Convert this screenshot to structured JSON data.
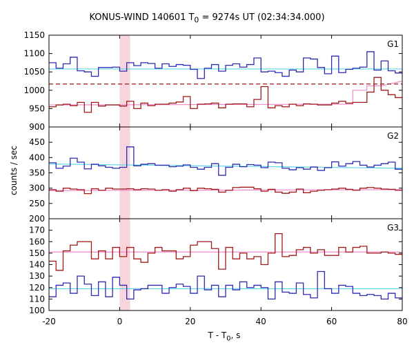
{
  "title_parts": {
    "pre": "KONUS-WIND 140601 T",
    "sub": "0",
    "post": " = 9274s UT (02:34:34.000)"
  },
  "ylabel": "counts / sec",
  "xlabel_parts": {
    "pre": "T - T",
    "sub": "0",
    "post": ", s"
  },
  "colors": {
    "blue": "#2b2bb0",
    "red": "#a01818",
    "cyan": "#5fd3e6",
    "pink": "#f08acb",
    "shade": "#f8d5dc"
  },
  "chart_data": {
    "type": "line",
    "xlim": [
      -20,
      80
    ],
    "xticks": [
      -20,
      0,
      20,
      40,
      60,
      80
    ],
    "bin_edges": [
      -20,
      -18,
      -16,
      -14,
      -12,
      -10,
      -8,
      -6,
      -4,
      -2,
      0,
      2,
      4,
      6,
      8,
      10,
      12,
      14,
      16,
      18,
      20,
      22,
      24,
      26,
      28,
      30,
      32,
      34,
      36,
      38,
      40,
      42,
      44,
      46,
      48,
      50,
      52,
      54,
      56,
      58,
      60,
      62,
      64,
      66,
      68,
      70,
      72,
      74,
      76,
      78,
      80
    ],
    "shaded_x": [
      0,
      2.944
    ],
    "panels": [
      {
        "name": "G1",
        "ylim": [
          900,
          1150
        ],
        "yticks": [
          900,
          950,
          1000,
          1050,
          1100,
          1150
        ],
        "series": [
          {
            "color": "blue",
            "values": [
              1075,
              1060,
              1072,
              1090,
              1053,
              1050,
              1038,
              1062,
              1062,
              1063,
              1052,
              1075,
              1067,
              1075,
              1073,
              1060,
              1072,
              1065,
              1070,
              1068,
              1057,
              1032,
              1060,
              1070,
              1052,
              1068,
              1072,
              1063,
              1070,
              1088,
              1050,
              1052,
              1048,
              1038,
              1055,
              1050,
              1088,
              1085,
              1062,
              1045,
              1093,
              1048,
              1057,
              1060,
              1063,
              1105,
              1055,
              1080,
              1053,
              1047
            ]
          },
          {
            "color": "red",
            "values": [
              955,
              960,
              962,
              958,
              967,
              940,
              967,
              957,
              960,
              960,
              957,
              970,
              950,
              965,
              958,
              962,
              962,
              965,
              968,
              983,
              950,
              962,
              963,
              965,
              952,
              962,
              963,
              963,
              955,
              975,
              1010,
              952,
              958,
              955,
              962,
              958,
              963,
              962,
              960,
              960,
              965,
              970,
              965,
              967,
              967,
              995,
              1035,
              1000,
              988,
              980
            ]
          }
        ],
        "fits": [
          {
            "color": "cyan",
            "points": [
              [
                -20,
                1058
              ],
              [
                80,
                1058
              ]
            ]
          },
          {
            "color": "pink",
            "points": [
              [
                -20,
                960
              ],
              [
                66,
                962
              ],
              [
                66,
                1000
              ],
              [
                70,
                1000
              ],
              [
                70,
                1012
              ],
              [
                74,
                1012
              ],
              [
                80,
                1025
              ]
            ]
          },
          {
            "color": "red",
            "dashed": true,
            "points": [
              [
                -20,
                1017
              ],
              [
                80,
                1017
              ]
            ]
          }
        ]
      },
      {
        "name": "G2",
        "ylim": [
          200,
          500
        ],
        "yticks": [
          200,
          250,
          300,
          350,
          400,
          450
        ],
        "series": [
          {
            "color": "blue",
            "values": [
              383,
              365,
              372,
              398,
              385,
              363,
              378,
              373,
              368,
              365,
              368,
              435,
              373,
              378,
              380,
              375,
              375,
              370,
              372,
              376,
              368,
              362,
              368,
              380,
              342,
              368,
              378,
              370,
              377,
              375,
              367,
              385,
              383,
              365,
              360,
              367,
              362,
              369,
              358,
              367,
              386,
              372,
              380,
              387,
              375,
              369,
              375,
              380,
              385,
              362
            ]
          },
          {
            "color": "red",
            "values": [
              295,
              290,
              300,
              297,
              295,
              282,
              298,
              293,
              300,
              297,
              297,
              298,
              295,
              298,
              297,
              293,
              295,
              290,
              295,
              300,
              292,
              300,
              298,
              296,
              287,
              293,
              302,
              303,
              303,
              298,
              290,
              296,
              287,
              283,
              287,
              297,
              285,
              290,
              293,
              295,
              297,
              300,
              296,
              293,
              300,
              302,
              300,
              297,
              296,
              293
            ]
          }
        ],
        "fits": [
          {
            "color": "cyan",
            "points": [
              [
                -20,
                379
              ],
              [
                80,
                365
              ]
            ]
          },
          {
            "color": "pink",
            "points": [
              [
                -20,
                292
              ],
              [
                80,
                295
              ]
            ]
          }
        ]
      },
      {
        "name": "G3",
        "ylim": [
          100,
          180
        ],
        "yticks": [
          100,
          110,
          120,
          130,
          140,
          150,
          160,
          170
        ],
        "series": [
          {
            "color": "blue",
            "values": [
              112,
              122,
              124,
              115,
              130,
              123,
              113,
              125,
              112,
              129,
              122,
              110,
              118,
              119,
              122,
              122,
              115,
              120,
              123,
              121,
              115,
              130,
              118,
              122,
              112,
              122,
              118,
              125,
              120,
              122,
              120,
              110,
              125,
              116,
              115,
              124,
              114,
              111,
              134,
              119,
              115,
              122,
              121,
              115,
              113,
              114,
              113,
              110,
              115,
              111
            ]
          },
          {
            "color": "red",
            "values": [
              143,
              135,
              152,
              157,
              160,
              160,
              145,
              152,
              145,
              155,
              147,
              155,
              145,
              142,
              150,
              155,
              152,
              152,
              145,
              147,
              157,
              160,
              160,
              154,
              136,
              155,
              145,
              150,
              145,
              147,
              140,
              150,
              167,
              147,
              148,
              153,
              155,
              150,
              153,
              148,
              148,
              155,
              151,
              155,
              156,
              150,
              150,
              151,
              150,
              149
            ]
          }
        ],
        "fits": [
          {
            "color": "cyan",
            "points": [
              [
                -20,
                119
              ],
              [
                80,
                119
              ]
            ]
          },
          {
            "color": "pink",
            "points": [
              [
                -20,
                151
              ],
              [
                80,
                151
              ]
            ]
          }
        ]
      }
    ]
  }
}
